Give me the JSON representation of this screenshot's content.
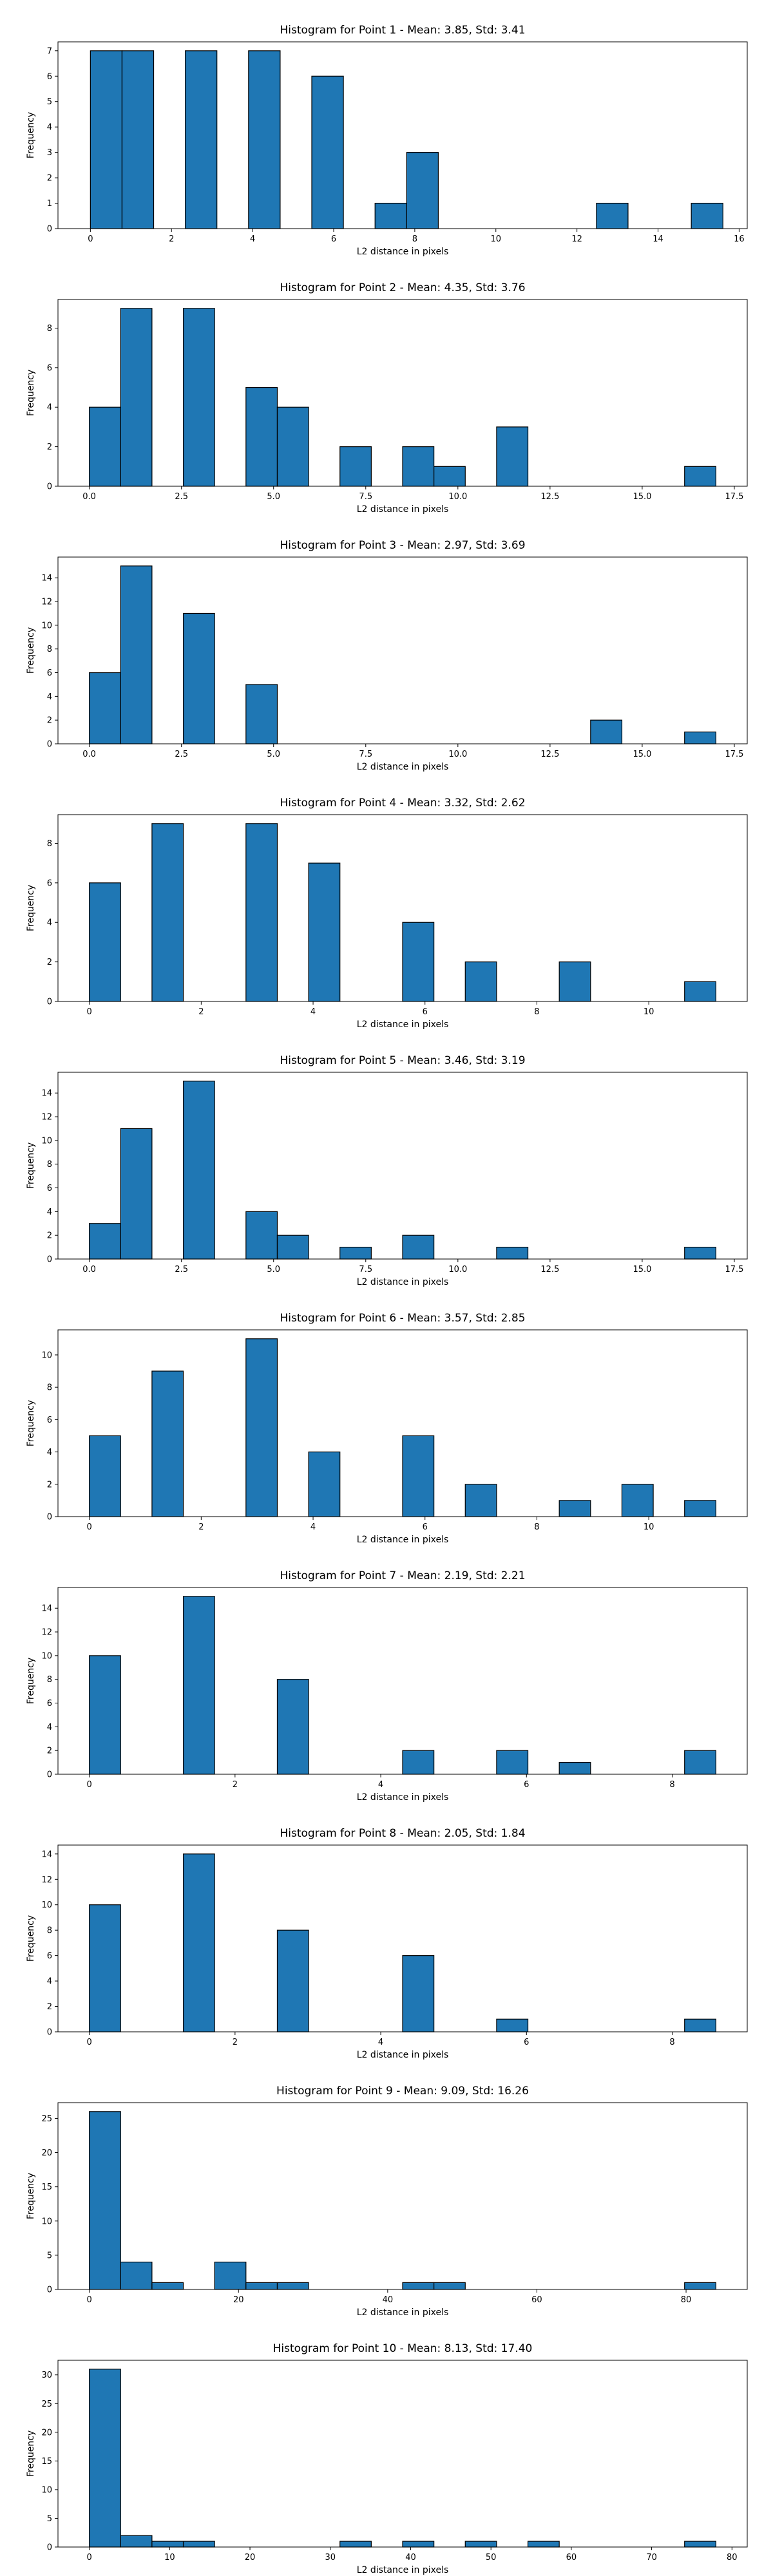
{
  "chart_data": [
    {
      "type": "bar",
      "title": "Histogram for Point 1 - Mean: 3.85, Std: 3.41",
      "xlabel": "L2 distance in pixels",
      "ylabel": "Frequency",
      "bar_color": "#1f77b4",
      "xlim": [
        -0.8,
        16.2
      ],
      "ylim": [
        0,
        7.35
      ],
      "xticks": [
        0,
        2,
        4,
        6,
        8,
        10,
        12,
        14,
        16
      ],
      "yticks": [
        0,
        1,
        2,
        3,
        4,
        5,
        6,
        7
      ],
      "bins": [
        {
          "x0": 0.0,
          "x1": 0.78,
          "count": 7
        },
        {
          "x0": 0.78,
          "x1": 1.56,
          "count": 7
        },
        {
          "x0": 2.34,
          "x1": 3.12,
          "count": 7
        },
        {
          "x0": 3.9,
          "x1": 4.68,
          "count": 7
        },
        {
          "x0": 5.46,
          "x1": 6.24,
          "count": 6
        },
        {
          "x0": 7.02,
          "x1": 7.8,
          "count": 1
        },
        {
          "x0": 7.8,
          "x1": 8.58,
          "count": 3
        },
        {
          "x0": 12.48,
          "x1": 13.26,
          "count": 1
        },
        {
          "x0": 14.82,
          "x1": 15.6,
          "count": 1
        }
      ]
    },
    {
      "type": "bar",
      "title": "Histogram for Point 2 - Mean: 4.35, Std: 3.76",
      "xlabel": "L2 distance in pixels",
      "ylabel": "Frequency",
      "bar_color": "#1f77b4",
      "xlim": [
        -0.85,
        17.85
      ],
      "ylim": [
        0,
        9.45
      ],
      "xticks": [
        0.0,
        2.5,
        5.0,
        7.5,
        10.0,
        12.5,
        15.0,
        17.5
      ],
      "xtick_labels": [
        "0.0",
        "2.5",
        "5.0",
        "7.5",
        "10.0",
        "12.5",
        "15.0",
        "17.5"
      ],
      "yticks": [
        0,
        2,
        4,
        6,
        8
      ],
      "bins": [
        {
          "x0": 0.0,
          "x1": 0.85,
          "count": 4
        },
        {
          "x0": 0.85,
          "x1": 1.7,
          "count": 9
        },
        {
          "x0": 2.55,
          "x1": 3.4,
          "count": 9
        },
        {
          "x0": 4.25,
          "x1": 5.1,
          "count": 5
        },
        {
          "x0": 5.1,
          "x1": 5.95,
          "count": 4
        },
        {
          "x0": 6.8,
          "x1": 7.65,
          "count": 2
        },
        {
          "x0": 8.5,
          "x1": 9.35,
          "count": 2
        },
        {
          "x0": 9.35,
          "x1": 10.2,
          "count": 1
        },
        {
          "x0": 11.05,
          "x1": 11.9,
          "count": 3
        },
        {
          "x0": 16.15,
          "x1": 17.0,
          "count": 1
        }
      ]
    },
    {
      "type": "bar",
      "title": "Histogram for Point 3 - Mean: 2.97, Std: 3.69",
      "xlabel": "L2 distance in pixels",
      "ylabel": "Frequency",
      "bar_color": "#1f77b4",
      "xlim": [
        -0.85,
        17.85
      ],
      "ylim": [
        0,
        15.75
      ],
      "xticks": [
        0.0,
        2.5,
        5.0,
        7.5,
        10.0,
        12.5,
        15.0,
        17.5
      ],
      "xtick_labels": [
        "0.0",
        "2.5",
        "5.0",
        "7.5",
        "10.0",
        "12.5",
        "15.0",
        "17.5"
      ],
      "yticks": [
        0,
        2,
        4,
        6,
        8,
        10,
        12,
        14
      ],
      "bins": [
        {
          "x0": 0.0,
          "x1": 0.85,
          "count": 6
        },
        {
          "x0": 0.85,
          "x1": 1.7,
          "count": 15
        },
        {
          "x0": 2.55,
          "x1": 3.4,
          "count": 11
        },
        {
          "x0": 4.25,
          "x1": 5.1,
          "count": 5
        },
        {
          "x0": 13.6,
          "x1": 14.45,
          "count": 2
        },
        {
          "x0": 16.15,
          "x1": 17.0,
          "count": 1
        }
      ]
    },
    {
      "type": "bar",
      "title": "Histogram for Point 4 - Mean: 3.32, Std: 2.62",
      "xlabel": "L2 distance in pixels",
      "ylabel": "Frequency",
      "bar_color": "#1f77b4",
      "xlim": [
        -0.56,
        11.76
      ],
      "ylim": [
        0,
        9.45
      ],
      "xticks": [
        0,
        2,
        4,
        6,
        8,
        10
      ],
      "yticks": [
        0,
        2,
        4,
        6,
        8
      ],
      "bins": [
        {
          "x0": 0.0,
          "x1": 0.56,
          "count": 6
        },
        {
          "x0": 1.12,
          "x1": 1.68,
          "count": 9
        },
        {
          "x0": 2.8,
          "x1": 3.36,
          "count": 9
        },
        {
          "x0": 3.92,
          "x1": 4.48,
          "count": 7
        },
        {
          "x0": 5.6,
          "x1": 6.16,
          "count": 4
        },
        {
          "x0": 6.72,
          "x1": 7.28,
          "count": 2
        },
        {
          "x0": 8.4,
          "x1": 8.96,
          "count": 2
        },
        {
          "x0": 10.64,
          "x1": 11.2,
          "count": 1
        }
      ]
    },
    {
      "type": "bar",
      "title": "Histogram for Point 5 - Mean: 3.46, Std: 3.19",
      "xlabel": "L2 distance in pixels",
      "ylabel": "Frequency",
      "bar_color": "#1f77b4",
      "xlim": [
        -0.85,
        17.85
      ],
      "ylim": [
        0,
        15.75
      ],
      "xticks": [
        0.0,
        2.5,
        5.0,
        7.5,
        10.0,
        12.5,
        15.0,
        17.5
      ],
      "xtick_labels": [
        "0.0",
        "2.5",
        "5.0",
        "7.5",
        "10.0",
        "12.5",
        "15.0",
        "17.5"
      ],
      "yticks": [
        0,
        2,
        4,
        6,
        8,
        10,
        12,
        14
      ],
      "bins": [
        {
          "x0": 0.0,
          "x1": 0.85,
          "count": 3
        },
        {
          "x0": 0.85,
          "x1": 1.7,
          "count": 11
        },
        {
          "x0": 2.55,
          "x1": 3.4,
          "count": 15
        },
        {
          "x0": 4.25,
          "x1": 5.1,
          "count": 4
        },
        {
          "x0": 5.1,
          "x1": 5.95,
          "count": 2
        },
        {
          "x0": 6.8,
          "x1": 7.65,
          "count": 1
        },
        {
          "x0": 8.5,
          "x1": 9.35,
          "count": 2
        },
        {
          "x0": 11.05,
          "x1": 11.9,
          "count": 1
        },
        {
          "x0": 16.15,
          "x1": 17.0,
          "count": 1
        }
      ]
    },
    {
      "type": "bar",
      "title": "Histogram for Point 6 - Mean: 3.57, Std: 2.85",
      "xlabel": "L2 distance in pixels",
      "ylabel": "Frequency",
      "bar_color": "#1f77b4",
      "xlim": [
        -0.56,
        11.76
      ],
      "ylim": [
        0,
        11.55
      ],
      "xticks": [
        0,
        2,
        4,
        6,
        8,
        10
      ],
      "yticks": [
        0,
        2,
        4,
        6,
        8,
        10
      ],
      "bins": [
        {
          "x0": 0.0,
          "x1": 0.56,
          "count": 5
        },
        {
          "x0": 1.12,
          "x1": 1.68,
          "count": 9
        },
        {
          "x0": 2.8,
          "x1": 3.36,
          "count": 11
        },
        {
          "x0": 3.92,
          "x1": 4.48,
          "count": 4
        },
        {
          "x0": 5.6,
          "x1": 6.16,
          "count": 5
        },
        {
          "x0": 6.72,
          "x1": 7.28,
          "count": 2
        },
        {
          "x0": 8.4,
          "x1": 8.96,
          "count": 1
        },
        {
          "x0": 9.52,
          "x1": 10.08,
          "count": 2
        },
        {
          "x0": 10.64,
          "x1": 11.2,
          "count": 1
        }
      ]
    },
    {
      "type": "bar",
      "title": "Histogram for Point 7 - Mean: 2.19, Std: 2.21",
      "xlabel": "L2 distance in pixels",
      "ylabel": "Frequency",
      "bar_color": "#1f77b4",
      "xlim": [
        -0.43,
        9.03
      ],
      "ylim": [
        0,
        15.75
      ],
      "xticks": [
        0,
        2,
        4,
        6,
        8
      ],
      "yticks": [
        0,
        2,
        4,
        6,
        8,
        10,
        12,
        14
      ],
      "bins": [
        {
          "x0": 0.0,
          "x1": 0.43,
          "count": 10
        },
        {
          "x0": 1.29,
          "x1": 1.72,
          "count": 15
        },
        {
          "x0": 2.58,
          "x1": 3.01,
          "count": 8
        },
        {
          "x0": 4.3,
          "x1": 4.73,
          "count": 2
        },
        {
          "x0": 5.59,
          "x1": 6.02,
          "count": 2
        },
        {
          "x0": 6.45,
          "x1": 6.88,
          "count": 1
        },
        {
          "x0": 8.17,
          "x1": 8.6,
          "count": 2
        }
      ]
    },
    {
      "type": "bar",
      "title": "Histogram for Point 8 - Mean: 2.05, Std: 1.84",
      "xlabel": "L2 distance in pixels",
      "ylabel": "Frequency",
      "bar_color": "#1f77b4",
      "xlim": [
        -0.43,
        9.03
      ],
      "ylim": [
        0,
        14.7
      ],
      "xticks": [
        0,
        2,
        4,
        6,
        8
      ],
      "yticks": [
        0,
        2,
        4,
        6,
        8,
        10,
        12,
        14
      ],
      "bins": [
        {
          "x0": 0.0,
          "x1": 0.43,
          "count": 10
        },
        {
          "x0": 1.29,
          "x1": 1.72,
          "count": 14
        },
        {
          "x0": 2.58,
          "x1": 3.01,
          "count": 8
        },
        {
          "x0": 4.3,
          "x1": 4.73,
          "count": 6
        },
        {
          "x0": 5.59,
          "x1": 6.02,
          "count": 1
        },
        {
          "x0": 8.17,
          "x1": 8.6,
          "count": 1
        }
      ]
    },
    {
      "type": "bar",
      "title": "Histogram for Point 9 - Mean: 9.09, Std: 16.26",
      "xlabel": "L2 distance in pixels",
      "ylabel": "Frequency",
      "bar_color": "#1f77b4",
      "xlim": [
        -4.2,
        88.2
      ],
      "ylim": [
        0,
        27.3
      ],
      "xticks": [
        0,
        20,
        40,
        60,
        80
      ],
      "yticks": [
        0,
        5,
        10,
        15,
        20,
        25
      ],
      "bins": [
        {
          "x0": 0.0,
          "x1": 4.2,
          "count": 26
        },
        {
          "x0": 4.2,
          "x1": 8.4,
          "count": 4
        },
        {
          "x0": 8.4,
          "x1": 12.6,
          "count": 1
        },
        {
          "x0": 16.8,
          "x1": 21.0,
          "count": 4
        },
        {
          "x0": 21.0,
          "x1": 25.2,
          "count": 1
        },
        {
          "x0": 25.2,
          "x1": 29.4,
          "count": 1
        },
        {
          "x0": 42.0,
          "x1": 46.2,
          "count": 1
        },
        {
          "x0": 46.2,
          "x1": 50.4,
          "count": 1
        },
        {
          "x0": 79.8,
          "x1": 84.0,
          "count": 1
        }
      ]
    },
    {
      "type": "bar",
      "title": "Histogram for Point 10 - Mean: 8.13, Std: 17.40",
      "xlabel": "L2 distance in pixels",
      "ylabel": "Frequency",
      "bar_color": "#1f77b4",
      "xlim": [
        -3.9,
        81.9
      ],
      "ylim": [
        0,
        32.55
      ],
      "xticks": [
        0,
        10,
        20,
        30,
        40,
        50,
        60,
        70,
        80
      ],
      "yticks": [
        0,
        5,
        10,
        15,
        20,
        25,
        30
      ],
      "bins": [
        {
          "x0": 0.0,
          "x1": 3.9,
          "count": 31
        },
        {
          "x0": 3.9,
          "x1": 7.8,
          "count": 2
        },
        {
          "x0": 7.8,
          "x1": 11.7,
          "count": 1
        },
        {
          "x0": 11.7,
          "x1": 15.6,
          "count": 1
        },
        {
          "x0": 31.2,
          "x1": 35.1,
          "count": 1
        },
        {
          "x0": 39.0,
          "x1": 42.9,
          "count": 1
        },
        {
          "x0": 46.8,
          "x1": 50.7,
          "count": 1
        },
        {
          "x0": 54.6,
          "x1": 58.5,
          "count": 1
        },
        {
          "x0": 74.1,
          "x1": 78.0,
          "count": 1
        }
      ]
    }
  ]
}
